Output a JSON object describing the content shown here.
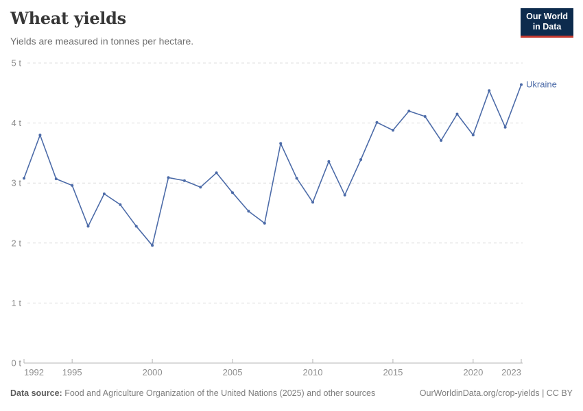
{
  "header": {
    "title": "Wheat yields",
    "subtitle": "Yields are measured in tonnes per hectare."
  },
  "logo": {
    "line1": "Our World",
    "line2": "in Data"
  },
  "footer": {
    "source_label": "Data source:",
    "source_text": " Food and Agriculture Organization of the United Nations (2025) and other sources",
    "link_text": "OurWorldinData.org/crop-yields | CC BY"
  },
  "colors": {
    "line": "#4C6BA8",
    "grid": "#dcdcdc",
    "axis": "#b5b5b5",
    "tick_label": "#8f8f8f",
    "series_label": "#4C6BA8"
  },
  "chart_data": {
    "type": "line",
    "title": "Wheat yields",
    "subtitle": "Yields are measured in tonnes per hectare.",
    "unit": "t",
    "ylabel": "tonnes per hectare",
    "ylim": [
      0,
      5
    ],
    "yticks": [
      0,
      1,
      2,
      3,
      4,
      5
    ],
    "ytick_suffix": " t",
    "xticks": [
      1992,
      1995,
      2000,
      2005,
      2010,
      2015,
      2020,
      2023
    ],
    "grid": "horizontal-dashed",
    "legend_position": "end-of-line",
    "x": [
      1992,
      1993,
      1994,
      1995,
      1996,
      1997,
      1998,
      1999,
      2000,
      2001,
      2002,
      2003,
      2004,
      2005,
      2006,
      2007,
      2008,
      2009,
      2010,
      2011,
      2012,
      2013,
      2014,
      2015,
      2016,
      2017,
      2018,
      2019,
      2020,
      2021,
      2022,
      2023
    ],
    "series": [
      {
        "name": "Ukraine",
        "color": "#4C6BA8",
        "values": [
          3.08,
          3.8,
          3.07,
          2.96,
          2.28,
          2.82,
          2.64,
          2.28,
          1.96,
          3.09,
          3.04,
          2.93,
          3.17,
          2.84,
          2.53,
          2.33,
          3.66,
          3.08,
          2.68,
          3.36,
          2.8,
          3.39,
          4.01,
          3.88,
          4.2,
          4.11,
          3.71,
          4.15,
          3.8,
          4.54,
          3.93,
          4.64
        ]
      }
    ]
  }
}
